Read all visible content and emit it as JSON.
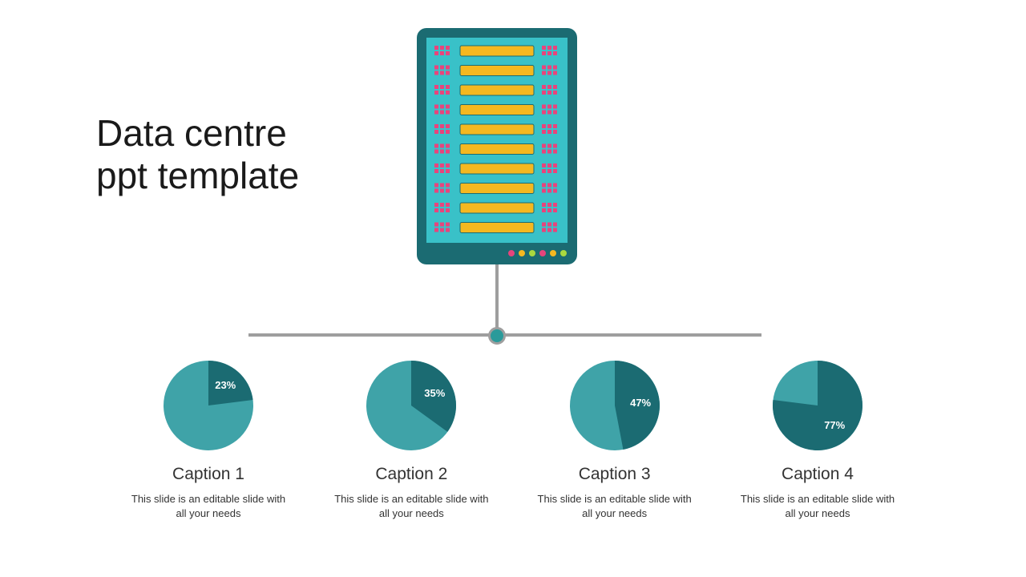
{
  "title": {
    "line1": "Data centre",
    "line2": "ppt template",
    "fontsize": 46,
    "color": "#1a1a1a"
  },
  "server": {
    "frame_color": "#1b6b72",
    "panel_color": "#39c1c8",
    "slot_color": "#f5b820",
    "dot_color": "#e8447c",
    "rack_rows": 10,
    "indicator_colors": [
      "#e8447c",
      "#f5b820",
      "#aad83f",
      "#e8447c",
      "#f5b820",
      "#aad83f"
    ]
  },
  "connector": {
    "line_color": "#9e9e9e",
    "hub_fill": "#2a9a9a"
  },
  "pie_colors": {
    "base": "#3fa3a8",
    "highlight": "#1b6b72",
    "label_color": "#ffffff",
    "label_fontsize": 13
  },
  "items": [
    {
      "percent": 23,
      "percent_label": "23%",
      "caption": "Caption 1",
      "desc": "This slide is an editable slide with all your needs"
    },
    {
      "percent": 35,
      "percent_label": "35%",
      "caption": "Caption 2",
      "desc": "This slide is an editable slide with all your needs"
    },
    {
      "percent": 47,
      "percent_label": "47%",
      "caption": "Caption 3",
      "desc": "This slide is an editable slide with all your needs"
    },
    {
      "percent": 77,
      "percent_label": "77%",
      "caption": "Caption 4",
      "desc": "This slide is an editable slide with all your needs"
    }
  ],
  "caption_style": {
    "fontsize": 21,
    "color": "#333333"
  },
  "desc_style": {
    "fontsize": 13,
    "color": "#333333"
  },
  "background_color": "#ffffff"
}
